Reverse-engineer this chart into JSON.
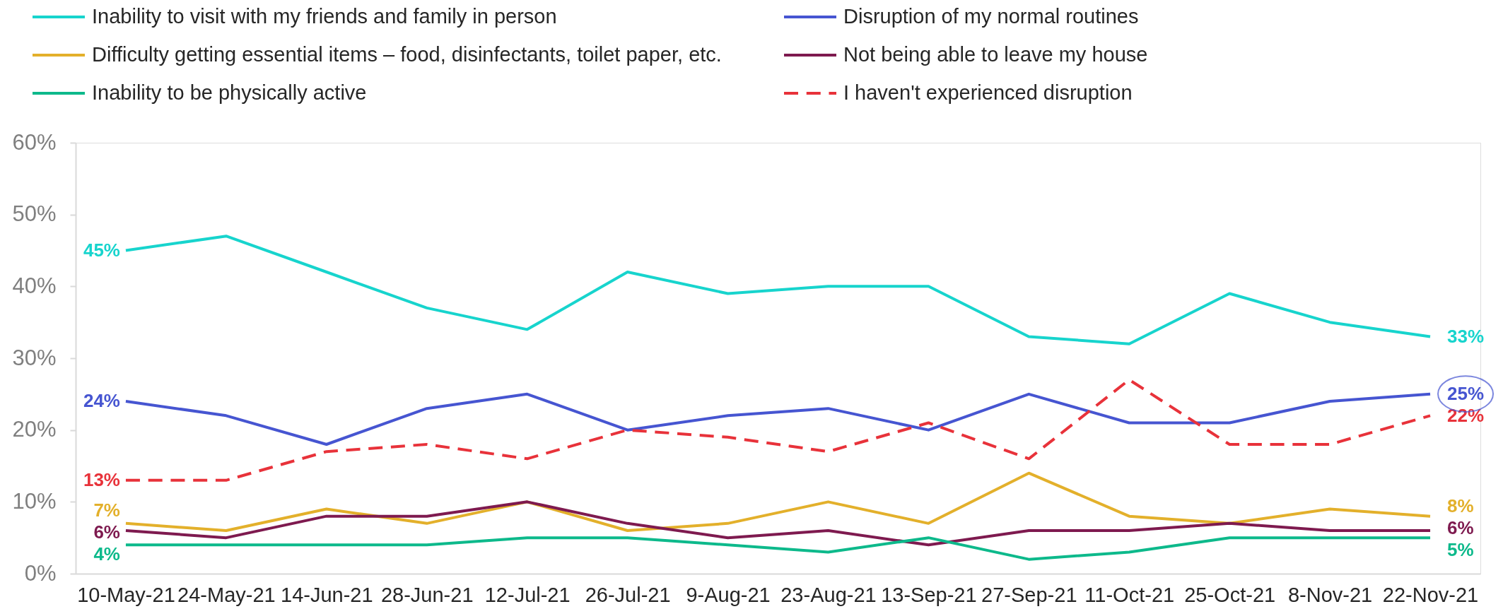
{
  "chart_data": {
    "type": "line",
    "categories": [
      "10-May-21",
      "24-May-21",
      "14-Jun-21",
      "28-Jun-21",
      "12-Jul-21",
      "26-Jul-21",
      "9-Aug-21",
      "23-Aug-21",
      "13-Sep-21",
      "27-Sep-21",
      "11-Oct-21",
      "25-Oct-21",
      "8-Nov-21",
      "22-Nov-21"
    ],
    "series": [
      {
        "name": "Inability to visit with my friends and family in person",
        "color": "#17d4cd",
        "values": [
          45,
          47,
          42,
          37,
          34,
          42,
          39,
          40,
          40,
          33,
          32,
          39,
          35,
          33
        ],
        "value_labels": [
          "45%",
          null,
          null,
          null,
          null,
          null,
          null,
          null,
          null,
          null,
          null,
          null,
          null,
          "33%"
        ]
      },
      {
        "name": "Disruption of my normal routines",
        "color": "#4655d1",
        "values": [
          24,
          22,
          18,
          23,
          25,
          20,
          22,
          23,
          20,
          25,
          21,
          21,
          24,
          25
        ],
        "value_labels": [
          "24%",
          null,
          null,
          null,
          null,
          null,
          null,
          null,
          null,
          null,
          null,
          null,
          null,
          null
        ]
      },
      {
        "name": "Difficulty getting essential items – food, disinfectants, toilet paper, etc.",
        "color": "#e3b02b",
        "values": [
          7,
          6,
          9,
          7,
          10,
          6,
          7,
          10,
          7,
          14,
          8,
          7,
          9,
          8
        ],
        "value_labels": [
          "7%",
          null,
          null,
          null,
          null,
          null,
          null,
          null,
          null,
          null,
          null,
          null,
          null,
          "8%"
        ]
      },
      {
        "name": "Not being able to leave my house",
        "color": "#7e1a4f",
        "values": [
          6,
          5,
          8,
          8,
          10,
          7,
          5,
          6,
          4,
          6,
          6,
          7,
          6,
          6
        ],
        "value_labels": [
          "6%",
          null,
          null,
          null,
          null,
          null,
          null,
          null,
          null,
          null,
          null,
          null,
          null,
          "6%"
        ]
      },
      {
        "name": "Inability to be physically active",
        "color": "#0db98b",
        "values": [
          4,
          4,
          4,
          4,
          5,
          5,
          4,
          3,
          5,
          2,
          3,
          5,
          5,
          5
        ],
        "value_labels": [
          "4%",
          null,
          null,
          null,
          null,
          null,
          null,
          null,
          null,
          null,
          null,
          null,
          null,
          "5%"
        ]
      },
      {
        "name": "I haven't experienced disruption",
        "color": "#e8323a",
        "line_style": "dashed",
        "values": [
          13,
          13,
          17,
          18,
          16,
          20,
          19,
          17,
          21,
          16,
          27,
          18,
          18,
          22
        ],
        "value_labels": [
          "13%",
          null,
          null,
          null,
          null,
          null,
          null,
          null,
          null,
          null,
          null,
          null,
          null,
          "22%"
        ]
      }
    ],
    "annotations": [
      {
        "text": "25%",
        "x": "22-Nov-21",
        "y": 25
      }
    ],
    "ylim": [
      0,
      60
    ],
    "yticks": [
      {
        "value": 0,
        "label": "0%"
      },
      {
        "value": 10,
        "label": "10%"
      },
      {
        "value": 20,
        "label": "20%"
      },
      {
        "value": 30,
        "label": "30%"
      },
      {
        "value": 40,
        "label": "40%"
      },
      {
        "value": 50,
        "label": "50%"
      },
      {
        "value": 60,
        "label": "60%"
      }
    ],
    "grid": false,
    "legend": "top",
    "line_style": "solid"
  }
}
